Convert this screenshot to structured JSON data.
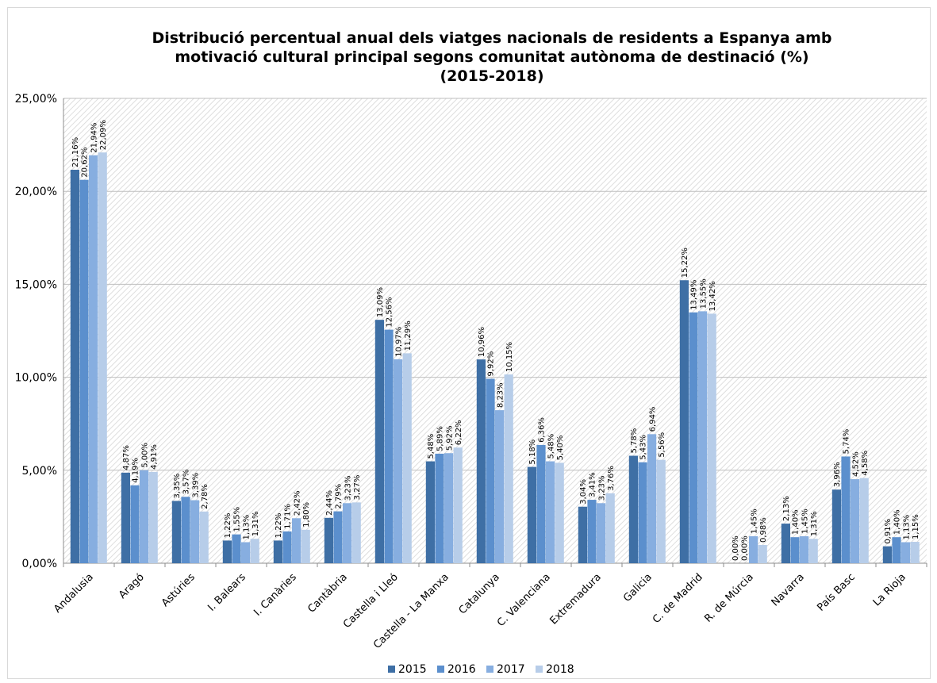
{
  "chart_data": {
    "type": "bar",
    "title_lines": [
      "Distribució percentual anual dels viatges nacionals de residents a Espanya amb",
      "motivació cultural principal segons comunitat autònoma de destinació (%)",
      "(2015-2018)"
    ],
    "categories": [
      "Andalusia",
      "Aragó",
      "Astúries",
      "I. Balears",
      "I. Canàries",
      "Cantàbria",
      "Castella i Lleó",
      "Castella - La Manxa",
      "Catalunya",
      "C. Valenciana",
      "Extremadura",
      "Galicia",
      "C. de Madrid",
      "R. de Múrcia",
      "Navarra",
      "País Basc",
      "La Rioja"
    ],
    "series": [
      {
        "name": "2015",
        "color": "#3e6fa5",
        "values": [
          21.16,
          4.87,
          3.35,
          1.22,
          1.22,
          2.44,
          13.09,
          5.48,
          10.96,
          5.18,
          3.04,
          5.78,
          15.22,
          0.0,
          2.13,
          3.96,
          0.91
        ],
        "labels": [
          "21,16%",
          "4,87%",
          "3,35%",
          "1,22%",
          "1,22%",
          "2,44%",
          "13,09%",
          "5,48%",
          "10,96%",
          "5,18%",
          "3,04%",
          "5,78%",
          "15,22%",
          "0,00%",
          "2,13%",
          "3,96%",
          "0,91%"
        ]
      },
      {
        "name": "2016",
        "color": "#5b8fcd",
        "values": [
          20.62,
          4.19,
          3.57,
          1.55,
          1.71,
          2.79,
          12.56,
          5.89,
          9.92,
          6.36,
          3.41,
          5.43,
          13.49,
          0.0,
          1.4,
          5.74,
          1.4
        ],
        "labels": [
          "20,62%",
          "4,19%",
          "3,57%",
          "1,55%",
          "1,71%",
          "2,79%",
          "12,56%",
          "5,89%",
          "9,92%",
          "6,36%",
          "3,41%",
          "5,43%",
          "13,49%",
          "0,00%",
          "1,40%",
          "5,74%",
          "1,40%"
        ]
      },
      {
        "name": "2017",
        "color": "#87aee0",
        "values": [
          21.94,
          5.0,
          3.39,
          1.13,
          2.42,
          3.23,
          10.97,
          5.92,
          8.23,
          5.48,
          3.23,
          6.94,
          13.55,
          1.45,
          1.45,
          4.52,
          1.13
        ],
        "labels": [
          "21,94%",
          "5,00%",
          "3,39%",
          "1,13%",
          "2,42%",
          "3,23%",
          "10,97%",
          "5,92%",
          "8,23%",
          "5,48%",
          "3,23%",
          "6,94%",
          "13,55%",
          "1,45%",
          "1,45%",
          "4,52%",
          "1,13%"
        ]
      },
      {
        "name": "2018",
        "color": "#b7cde9",
        "values": [
          22.09,
          4.91,
          2.78,
          1.31,
          1.8,
          3.27,
          11.29,
          6.22,
          10.15,
          5.4,
          3.76,
          5.56,
          13.42,
          0.98,
          1.31,
          4.58,
          1.15
        ],
        "labels": [
          "22,09%",
          "4,91%",
          "2,78%",
          "1,31%",
          "1,80%",
          "3,27%",
          "11,29%",
          "6,22%",
          "10,15%",
          "5,40%",
          "3,76%",
          "5,56%",
          "13,42%",
          "0,98%",
          "1,31%",
          "4,58%",
          "1,15%"
        ]
      }
    ],
    "ylim": [
      0,
      25
    ],
    "y_ticks": [
      0,
      5,
      10,
      15,
      20,
      25
    ],
    "y_tick_labels": [
      "0,00%",
      "5,00%",
      "10,00%",
      "15,00%",
      "20,00%",
      "25,00%"
    ],
    "grid": true,
    "legend_position": "bottom",
    "plot_background": "hatched light grey"
  }
}
